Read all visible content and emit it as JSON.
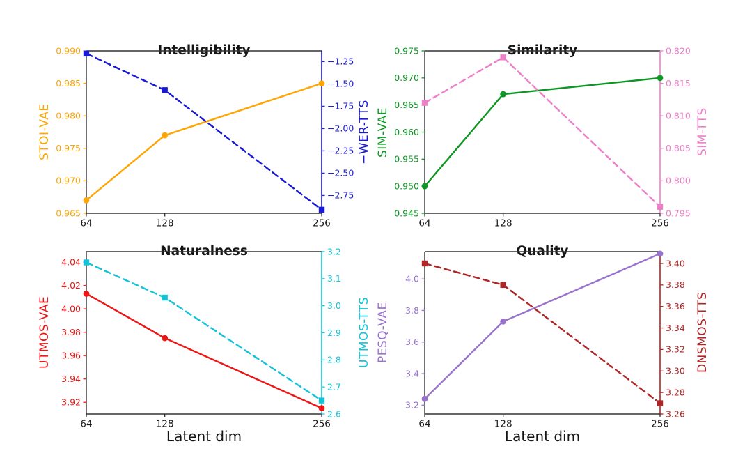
{
  "figure": {
    "background": "#ffffff",
    "spine_color": "#333333",
    "tick_text_color": "#1a1a1a"
  },
  "chart_data": [
    {
      "type": "line",
      "title": "Intelligibility",
      "xlabel": "",
      "grid": false,
      "legend": false,
      "x": [
        64,
        128,
        256
      ],
      "x_axis": {
        "lim": [
          64,
          256
        ],
        "ticks": [
          {
            "v": 64,
            "label": "64"
          },
          {
            "v": 128,
            "label": "128"
          },
          {
            "v": 256,
            "label": "256"
          }
        ]
      },
      "left_axis": {
        "label": "STOI-VAE",
        "color": "#ffa500",
        "lim": [
          0.965,
          0.99
        ],
        "ticks": [
          {
            "v": 0.965,
            "label": "0.965"
          },
          {
            "v": 0.97,
            "label": "0.970"
          },
          {
            "v": 0.975,
            "label": "0.975"
          },
          {
            "v": 0.98,
            "label": "0.980"
          },
          {
            "v": 0.985,
            "label": "0.985"
          },
          {
            "v": 0.99,
            "label": "0.990"
          }
        ]
      },
      "right_axis": {
        "label": "−WER-TTS",
        "color": "#1818d8",
        "lim": [
          -2.95,
          -1.13
        ],
        "ticks": [
          {
            "v": -1.25,
            "label": "−1.25"
          },
          {
            "v": -1.5,
            "label": "−1.50"
          },
          {
            "v": -1.75,
            "label": "−1.75"
          },
          {
            "v": -2.0,
            "label": "−2.00"
          },
          {
            "v": -2.25,
            "label": "−2.25"
          },
          {
            "v": -2.5,
            "label": "−2.50"
          },
          {
            "v": -2.75,
            "label": "−2.75"
          }
        ]
      },
      "series": [
        {
          "name": "STOI-VAE",
          "axis": "left",
          "style": "solid",
          "marker": "circle",
          "values": [
            0.967,
            0.977,
            0.985
          ]
        },
        {
          "name": "−WER-TTS",
          "axis": "right",
          "style": "dashed",
          "marker": "square",
          "values": [
            -1.16,
            -1.57,
            -2.91
          ]
        }
      ]
    },
    {
      "type": "line",
      "title": "Similarity",
      "xlabel": "",
      "grid": false,
      "legend": false,
      "x": [
        64,
        128,
        256
      ],
      "x_axis": {
        "lim": [
          64,
          256
        ],
        "ticks": [
          {
            "v": 64,
            "label": "64"
          },
          {
            "v": 128,
            "label": "128"
          },
          {
            "v": 256,
            "label": "256"
          }
        ]
      },
      "left_axis": {
        "label": "SIM-VAE",
        "color": "#0c9623",
        "lim": [
          0.945,
          0.975
        ],
        "ticks": [
          {
            "v": 0.945,
            "label": "0.945"
          },
          {
            "v": 0.95,
            "label": "0.950"
          },
          {
            "v": 0.955,
            "label": "0.955"
          },
          {
            "v": 0.96,
            "label": "0.960"
          },
          {
            "v": 0.965,
            "label": "0.965"
          },
          {
            "v": 0.97,
            "label": "0.970"
          },
          {
            "v": 0.975,
            "label": "0.975"
          }
        ]
      },
      "right_axis": {
        "label": "SIM-TTS",
        "color": "#ee7fc9",
        "lim": [
          0.795,
          0.82
        ],
        "ticks": [
          {
            "v": 0.795,
            "label": "0.795"
          },
          {
            "v": 0.8,
            "label": "0.800"
          },
          {
            "v": 0.805,
            "label": "0.805"
          },
          {
            "v": 0.81,
            "label": "0.810"
          },
          {
            "v": 0.815,
            "label": "0.815"
          },
          {
            "v": 0.82,
            "label": "0.820"
          }
        ]
      },
      "series": [
        {
          "name": "SIM-VAE",
          "axis": "left",
          "style": "solid",
          "marker": "circle",
          "values": [
            0.95,
            0.967,
            0.97
          ]
        },
        {
          "name": "SIM-TTS",
          "axis": "right",
          "style": "dashed",
          "marker": "square",
          "values": [
            0.812,
            0.819,
            0.796
          ]
        }
      ]
    },
    {
      "type": "line",
      "title": "Naturalness",
      "xlabel": "Latent dim",
      "grid": false,
      "legend": false,
      "x": [
        64,
        128,
        256
      ],
      "x_axis": {
        "lim": [
          64,
          256
        ],
        "ticks": [
          {
            "v": 64,
            "label": "64"
          },
          {
            "v": 128,
            "label": "128"
          },
          {
            "v": 256,
            "label": "256"
          }
        ]
      },
      "left_axis": {
        "label": "UTMOS-VAE",
        "color": "#ee1515",
        "lim": [
          3.91,
          4.049
        ],
        "ticks": [
          {
            "v": 3.92,
            "label": "3.92"
          },
          {
            "v": 3.94,
            "label": "3.94"
          },
          {
            "v": 3.96,
            "label": "3.96"
          },
          {
            "v": 3.98,
            "label": "3.98"
          },
          {
            "v": 4.0,
            "label": "4.00"
          },
          {
            "v": 4.02,
            "label": "4.02"
          },
          {
            "v": 4.04,
            "label": "4.04"
          }
        ]
      },
      "right_axis": {
        "label": "UTMOS-TTS",
        "color": "#13c3da",
        "lim": [
          2.6,
          3.2
        ],
        "ticks": [
          {
            "v": 2.6,
            "label": "2.6"
          },
          {
            "v": 2.7,
            "label": "2.7"
          },
          {
            "v": 2.8,
            "label": "2.8"
          },
          {
            "v": 2.9,
            "label": "2.9"
          },
          {
            "v": 3.0,
            "label": "3.0"
          },
          {
            "v": 3.1,
            "label": "3.1"
          },
          {
            "v": 3.2,
            "label": "3.2"
          }
        ]
      },
      "series": [
        {
          "name": "UTMOS-VAE",
          "axis": "left",
          "style": "solid",
          "marker": "circle",
          "values": [
            4.013,
            3.975,
            3.915
          ]
        },
        {
          "name": "UTMOS-TTS",
          "axis": "right",
          "style": "dashed",
          "marker": "square",
          "values": [
            3.16,
            3.03,
            2.65
          ]
        }
      ]
    },
    {
      "type": "line",
      "title": "Quality",
      "xlabel": "Latent dim",
      "grid": false,
      "legend": false,
      "x": [
        64,
        128,
        256
      ],
      "x_axis": {
        "lim": [
          64,
          256
        ],
        "ticks": [
          {
            "v": 64,
            "label": "64"
          },
          {
            "v": 128,
            "label": "128"
          },
          {
            "v": 256,
            "label": "256"
          }
        ]
      },
      "left_axis": {
        "label": "PESQ-VAE",
        "color": "#9973cb",
        "lim": [
          3.144,
          4.173
        ],
        "ticks": [
          {
            "v": 3.2,
            "label": "3.2"
          },
          {
            "v": 3.4,
            "label": "3.4"
          },
          {
            "v": 3.6,
            "label": "3.6"
          },
          {
            "v": 3.8,
            "label": "3.8"
          },
          {
            "v": 4.0,
            "label": "4.0"
          }
        ]
      },
      "right_axis": {
        "label": "DNSMOS-TTS",
        "color": "#b02525",
        "lim": [
          3.26,
          3.411
        ],
        "ticks": [
          {
            "v": 3.26,
            "label": "3.26"
          },
          {
            "v": 3.28,
            "label": "3.28"
          },
          {
            "v": 3.3,
            "label": "3.30"
          },
          {
            "v": 3.32,
            "label": "3.32"
          },
          {
            "v": 3.34,
            "label": "3.34"
          },
          {
            "v": 3.36,
            "label": "3.36"
          },
          {
            "v": 3.38,
            "label": "3.38"
          },
          {
            "v": 3.4,
            "label": "3.40"
          }
        ]
      },
      "series": [
        {
          "name": "PESQ-VAE",
          "axis": "left",
          "style": "solid",
          "marker": "circle",
          "values": [
            3.24,
            3.73,
            4.16
          ]
        },
        {
          "name": "DNSMOS-TTS",
          "axis": "right",
          "style": "dashed",
          "marker": "square",
          "values": [
            3.4,
            3.38,
            3.27
          ]
        }
      ]
    }
  ]
}
